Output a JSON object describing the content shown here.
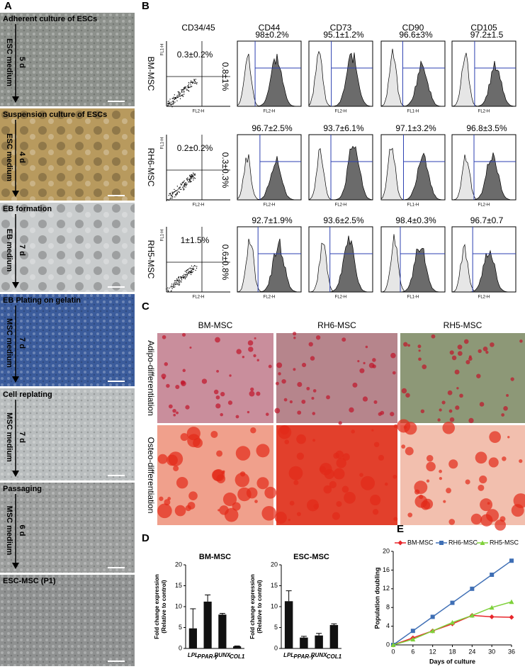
{
  "panel_a": {
    "label": "A",
    "steps": [
      {
        "title": "Adherent culture of ESCs",
        "medium": "ESC medium",
        "duration": "5 d"
      },
      {
        "title": "Suspension culture of ESCs",
        "medium": "ESC medium",
        "duration": "4 d"
      },
      {
        "title": "EB formation",
        "medium": "EB medium",
        "duration": "7 d"
      },
      {
        "title": "EB Plating on gelatin",
        "medium": "MSC medium",
        "duration": "7 d"
      },
      {
        "title": "Cell replating",
        "medium": "MSC medium",
        "duration": "7 d"
      },
      {
        "title": "Passaging",
        "medium": "MSC medium",
        "duration": "6 d"
      },
      {
        "title": "ESC-MSC (P1)"
      }
    ]
  },
  "panel_b": {
    "label": "B",
    "markers": [
      "CD34/45",
      "CD44",
      "CD73",
      "CD90",
      "CD105"
    ],
    "x_axis_labels": [
      "FL2-H",
      "FL2-H",
      "FL2-H",
      "FL1-H",
      "FL2-H"
    ],
    "scatter_y_label": "FL1-H",
    "rows": [
      {
        "name": "BM-MSC",
        "quadrants": [
          "0.3±0.2%",
          "0.8±1%"
        ],
        "values": [
          "98±0.2%",
          "95.1±1.2%",
          "96.6±3%",
          "97.2±1.5"
        ]
      },
      {
        "name": "RH6-MSC",
        "quadrants": [
          "0.2±0.2%",
          "0.3±0.3%"
        ],
        "values": [
          "96.7±2.5%",
          "93.7±6.1%",
          "97.1±3.2%",
          "96.8±3.5%"
        ]
      },
      {
        "name": "RH5-MSC",
        "quadrants": [
          "1±1.5%",
          "0.6±0.8%"
        ],
        "values": [
          "92.7±1.9%",
          "93.6±2.5%",
          "98.4±0.3%",
          "96.7±0.7"
        ]
      }
    ]
  },
  "panel_c": {
    "label": "C",
    "columns": [
      "BM-MSC",
      "RH6-MSC",
      "RH5-MSC"
    ],
    "rows": [
      "Adipo-differentiation",
      "Osteo-differentiation"
    ]
  },
  "panel_d": {
    "label": "D"
  },
  "panel_e": {
    "label": "E"
  },
  "chart_data": [
    {
      "type": "bar",
      "title": "BM-MSC",
      "ylabel": [
        "Fold change expression",
        "(Relative to control)"
      ],
      "categories": [
        "LPL",
        "PPAR-γ",
        "RUNX",
        "COL1"
      ],
      "values": [
        4.8,
        11.2,
        8.1,
        0.5
      ],
      "errors": [
        4.7,
        1.6,
        0.3,
        0.1
      ],
      "color": "#111111",
      "ylim": [
        0,
        20
      ],
      "yticks": [
        0,
        5,
        10,
        15,
        20
      ]
    },
    {
      "type": "bar",
      "title": "ESC-MSC",
      "ylabel": [
        "Fold change expression",
        "(Relative to control)"
      ],
      "categories": [
        "LPL",
        "PPAR-γ",
        "RUNX",
        "COL1"
      ],
      "values": [
        11.3,
        2.6,
        3.1,
        5.6
      ],
      "errors": [
        2.5,
        0.3,
        0.5,
        0.3
      ],
      "color": "#111111",
      "ylim": [
        0,
        20
      ],
      "yticks": [
        0,
        5,
        10,
        15,
        20
      ]
    },
    {
      "type": "line",
      "xlabel": "Days of culture",
      "ylabel": "Population doubling",
      "x": [
        0,
        6,
        12,
        18,
        24,
        30,
        36
      ],
      "xlim": [
        0,
        36
      ],
      "xticks": [
        0,
        6,
        12,
        18,
        24,
        30,
        36
      ],
      "ylim": [
        0,
        20
      ],
      "yticks": [
        0,
        4,
        8,
        12,
        16,
        20
      ],
      "legend": "top",
      "series": [
        {
          "name": "BM-MSC",
          "color": "#e8262b",
          "marker": "diamond",
          "values": [
            0,
            1.5,
            3,
            4.5,
            6.3,
            6,
            5.9
          ]
        },
        {
          "name": "RH6-MSC",
          "color": "#3f6fb5",
          "marker": "square",
          "values": [
            0,
            3,
            6,
            9,
            12,
            15,
            18
          ]
        },
        {
          "name": "RH5-MSC",
          "color": "#7fd13b",
          "marker": "triangle",
          "values": [
            0,
            1.2,
            3,
            4.8,
            6.3,
            8,
            9.2
          ]
        }
      ]
    }
  ]
}
